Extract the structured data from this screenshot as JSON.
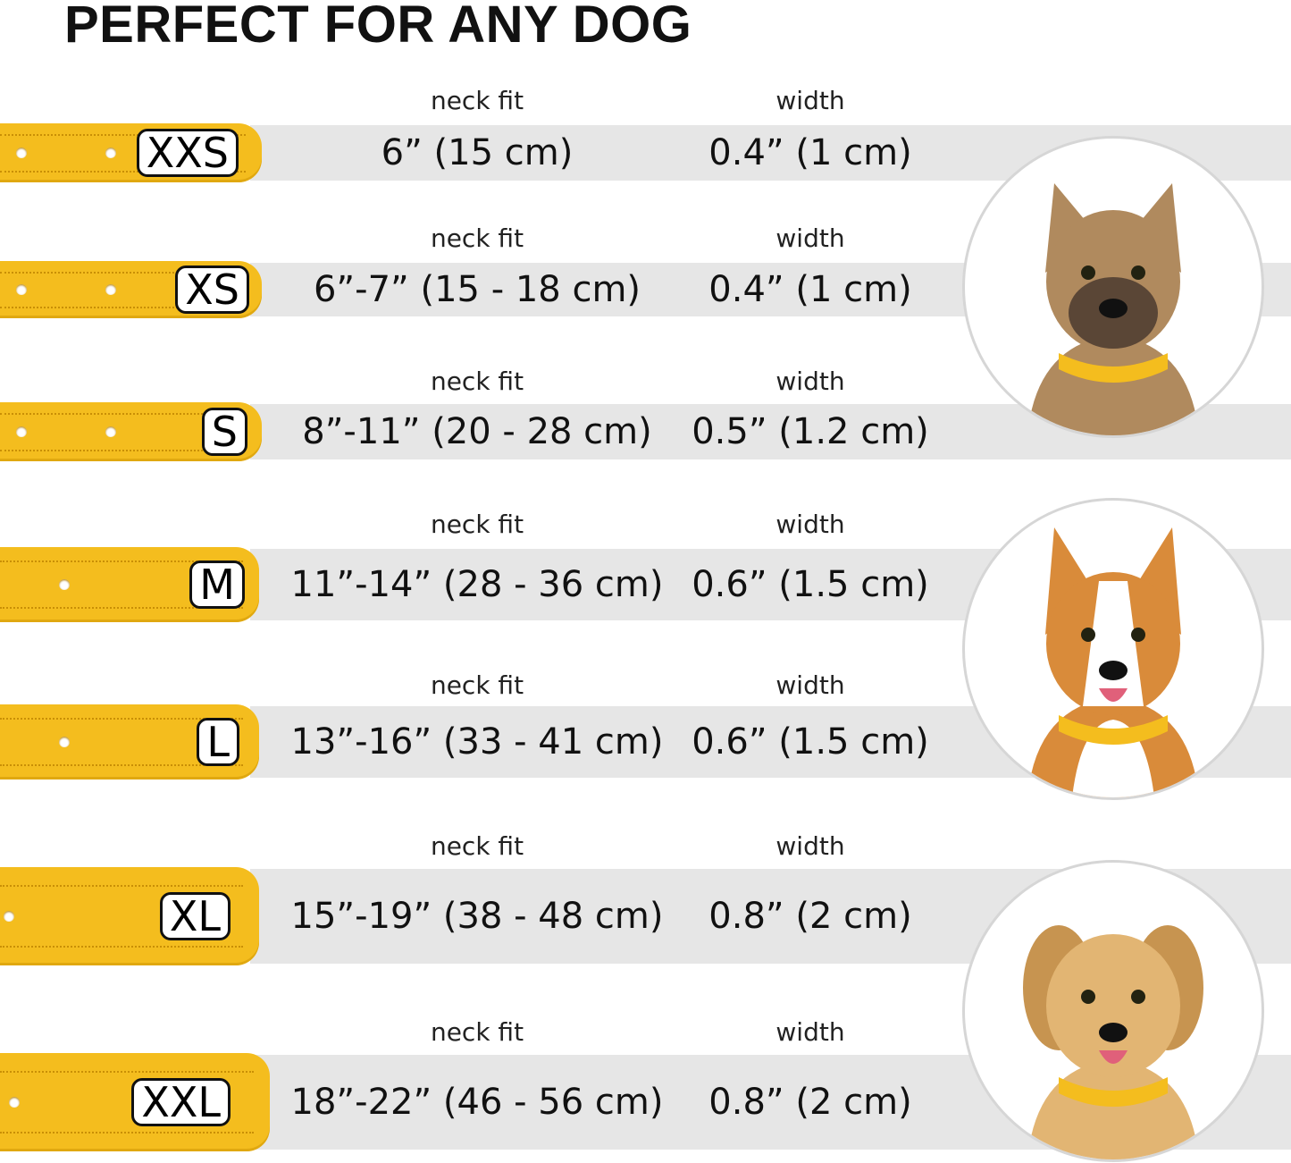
{
  "title": "PERFECT FOR ANY DOG",
  "colors": {
    "collar": "#f4bd1e",
    "band": "#e6e6e6"
  },
  "column_labels": {
    "neck_fit": "neck fit",
    "width": "width"
  },
  "sizes": [
    {
      "size": "XXS",
      "neck_fit": "6” (15 cm)",
      "width": "0.4” (1 cm)"
    },
    {
      "size": "XS",
      "neck_fit": "6”-7” (15 - 18 cm)",
      "width": "0.4” (1 cm)"
    },
    {
      "size": "S",
      "neck_fit": "8”-11” (20 - 28 cm)",
      "width": "0.5” (1.2 cm)"
    },
    {
      "size": "M",
      "neck_fit": "11”-14” (28 - 36 cm)",
      "width": "0.6” (1.5 cm)"
    },
    {
      "size": "L",
      "neck_fit": "13”-16” (33 - 41 cm)",
      "width": "0.6” (1.5 cm)"
    },
    {
      "size": "XL",
      "neck_fit": "15”-19” (38 - 48 cm)",
      "width": "0.8” (2 cm)"
    },
    {
      "size": "XXL",
      "neck_fit": "18”-22” (46 - 56 cm)",
      "width": "0.8” (2 cm)"
    }
  ],
  "dog_photos": [
    "small-terrier-photo",
    "corgi-photo",
    "labrador-photo"
  ]
}
